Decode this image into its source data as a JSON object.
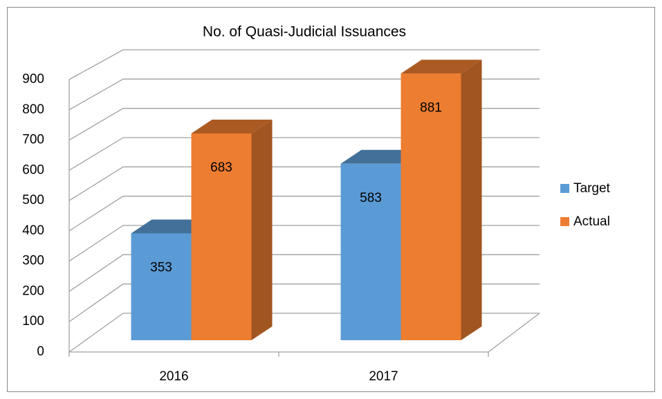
{
  "chart_data": {
    "type": "bar3d",
    "title": "No. of Quasi-Judicial Issuances",
    "categories": [
      "2016",
      "2017"
    ],
    "series": [
      {
        "name": "Target",
        "color": "#5b9bd5",
        "values": [
          353,
          583
        ]
      },
      {
        "name": "Actual",
        "color": "#ed7d31",
        "values": [
          683,
          881
        ]
      }
    ],
    "ylim": [
      0,
      900
    ],
    "yticks": [
      0,
      100,
      200,
      300,
      400,
      500,
      600,
      700,
      800,
      900
    ],
    "grid": true,
    "legend": "right"
  }
}
